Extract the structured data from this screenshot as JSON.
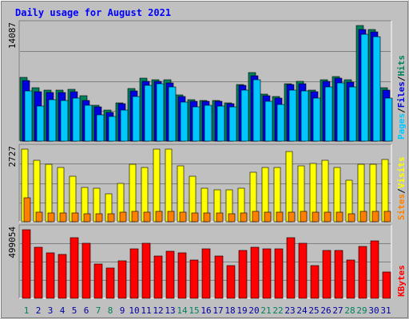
{
  "title": "Daily usage for August 2021",
  "colors": {
    "background": "#c0c0c0",
    "title": "#0000ff",
    "hits": "#00805c",
    "files": "#0000e0",
    "pages": "#00c8ff",
    "visits": "#ffff00",
    "sites": "#ff8000",
    "kbytes": "#ff0000",
    "weekend_label": "#00805c",
    "weekday_label": "#0000a0",
    "axis_text": "#000000"
  },
  "chart_data": [
    {
      "type": "bar",
      "name": "hits-files-pages",
      "ymax_label": "14087",
      "ylim": [
        0,
        14087
      ],
      "side_labels": [
        "Pages",
        "/",
        "Files",
        "/",
        "Hits"
      ],
      "categories": [
        "1",
        "2",
        "3",
        "4",
        "5",
        "6",
        "7",
        "8",
        "9",
        "10",
        "11",
        "12",
        "13",
        "14",
        "15",
        "16",
        "17",
        "18",
        "19",
        "20",
        "21",
        "22",
        "23",
        "24",
        "25",
        "26",
        "27",
        "28",
        "29",
        "30",
        "31"
      ],
      "series": [
        {
          "name": "Hits",
          "values": [
            7800,
            6500,
            6200,
            6200,
            6300,
            5500,
            4400,
            3800,
            4700,
            6400,
            7700,
            7500,
            7500,
            5600,
            5100,
            5000,
            5000,
            4700,
            6900,
            8400,
            5700,
            5400,
            7000,
            7300,
            6200,
            7500,
            7900,
            7500,
            14087,
            13600,
            6500
          ]
        },
        {
          "name": "Files",
          "values": [
            7400,
            6000,
            5900,
            5900,
            6000,
            5000,
            4200,
            3500,
            4600,
            6100,
            7300,
            7300,
            7100,
            5400,
            4900,
            4900,
            4900,
            4600,
            6800,
            8000,
            5500,
            5200,
            6900,
            7000,
            6000,
            7300,
            7700,
            7200,
            13600,
            13300,
            6200
          ]
        },
        {
          "name": "Pages",
          "values": [
            6100,
            4300,
            5100,
            5000,
            5200,
            4400,
            3200,
            3000,
            3800,
            5400,
            6800,
            7000,
            6600,
            4800,
            4200,
            4400,
            4300,
            4200,
            6200,
            7500,
            4900,
            4500,
            6200,
            6100,
            5200,
            6600,
            7100,
            6600,
            13000,
            12700,
            5200
          ]
        }
      ]
    },
    {
      "type": "bar",
      "name": "visits-sites",
      "ymax_label": "2727",
      "ylim": [
        0,
        2727
      ],
      "side_labels": [
        "Sites",
        "/",
        "Visits"
      ],
      "categories": [
        "1",
        "2",
        "3",
        "4",
        "5",
        "6",
        "7",
        "8",
        "9",
        "10",
        "11",
        "12",
        "13",
        "14",
        "15",
        "16",
        "17",
        "18",
        "19",
        "20",
        "21",
        "22",
        "23",
        "24",
        "25",
        "26",
        "27",
        "28",
        "29",
        "30",
        "31"
      ],
      "series": [
        {
          "name": "Visits",
          "values": [
            2727,
            2300,
            2150,
            2050,
            1700,
            1300,
            1250,
            1050,
            1450,
            2150,
            2050,
            2727,
            2727,
            2100,
            1700,
            1250,
            1200,
            1200,
            1250,
            1850,
            2050,
            2050,
            2650,
            2100,
            2200,
            2300,
            2050,
            1550,
            2150,
            2150,
            2350
          ]
        },
        {
          "name": "Sites",
          "values": [
            890,
            360,
            340,
            330,
            330,
            300,
            300,
            300,
            360,
            390,
            370,
            380,
            390,
            370,
            340,
            340,
            320,
            300,
            330,
            380,
            370,
            360,
            360,
            380,
            370,
            370,
            370,
            300,
            390,
            390,
            380
          ]
        }
      ]
    },
    {
      "type": "bar",
      "name": "kbytes",
      "ymax_label": "499054",
      "ylim": [
        0,
        499054
      ],
      "side_labels": [
        "KBytes"
      ],
      "categories": [
        "1",
        "2",
        "3",
        "4",
        "5",
        "6",
        "7",
        "8",
        "9",
        "10",
        "11",
        "12",
        "13",
        "14",
        "15",
        "16",
        "17",
        "18",
        "19",
        "20",
        "21",
        "22",
        "23",
        "24",
        "25",
        "26",
        "27",
        "28",
        "29",
        "30",
        "31"
      ],
      "series": [
        {
          "name": "KBytes",
          "values": [
            499054,
            370000,
            330000,
            320000,
            440000,
            400000,
            250000,
            220000,
            270000,
            360000,
            400000,
            310000,
            340000,
            330000,
            280000,
            360000,
            310000,
            240000,
            350000,
            370000,
            360000,
            360000,
            440000,
            400000,
            240000,
            350000,
            350000,
            280000,
            380000,
            420000,
            190000
          ]
        }
      ]
    }
  ],
  "weekend_days": [
    "1",
    "7",
    "8",
    "14",
    "15",
    "21",
    "22",
    "28",
    "29"
  ]
}
